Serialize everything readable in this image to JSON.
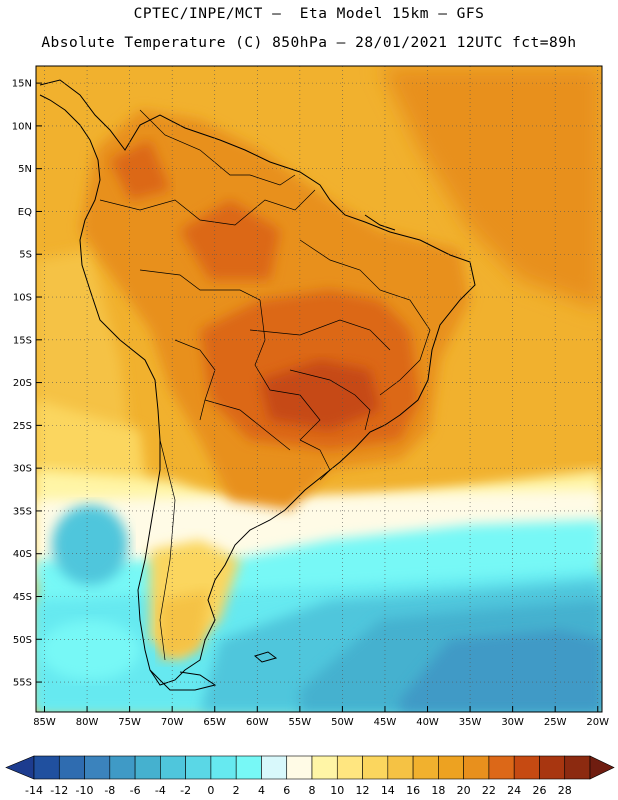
{
  "title_line1": "CPTEC/INPE/MCT –  Eta Model 15km – GFS",
  "title_line2": "Absolute Temperature (C) 850hPa – 28/01/2021 12UTC fct=89h",
  "lat_labels": [
    "15N",
    "10N",
    "5N",
    "EQ",
    "5S",
    "10S",
    "15S",
    "20S",
    "25S",
    "30S",
    "35S",
    "40S",
    "45S",
    "50S",
    "55S"
  ],
  "lon_labels": [
    "85W",
    "80W",
    "75W",
    "70W",
    "65W",
    "60W",
    "55W",
    "50W",
    "45W",
    "40W",
    "35W",
    "30W",
    "25W",
    "20W"
  ],
  "colorbar": {
    "levels": [
      "-14",
      "-12",
      "-10",
      "-8",
      "-6",
      "-4",
      "-2",
      "0",
      "2",
      "4",
      "6",
      "8",
      "10",
      "12",
      "14",
      "16",
      "18",
      "20",
      "22",
      "24",
      "26",
      "28"
    ],
    "colors": [
      "#1d3c8f",
      "#20509f",
      "#2f6cb0",
      "#3b83bd",
      "#3f9ac6",
      "#45b1cf",
      "#4fc6dc",
      "#5ad7e6",
      "#66e9f0",
      "#77f8f6",
      "#d8f8fb",
      "#fffbe6",
      "#fff5a6",
      "#ffe680",
      "#fbd65e",
      "#f5c244",
      "#f1b12e",
      "#eda221",
      "#e8901d",
      "#dc6818",
      "#c64a12",
      "#a83610",
      "#8c2a10",
      "#6f1d10"
    ]
  },
  "field_colors": {
    "ocean_warm": "#f1b12e",
    "land_hot": "#dc6818",
    "land_warm": "#e8901d",
    "cold_south": "#66e9f0",
    "deep_cold": "#3f9ac6"
  }
}
